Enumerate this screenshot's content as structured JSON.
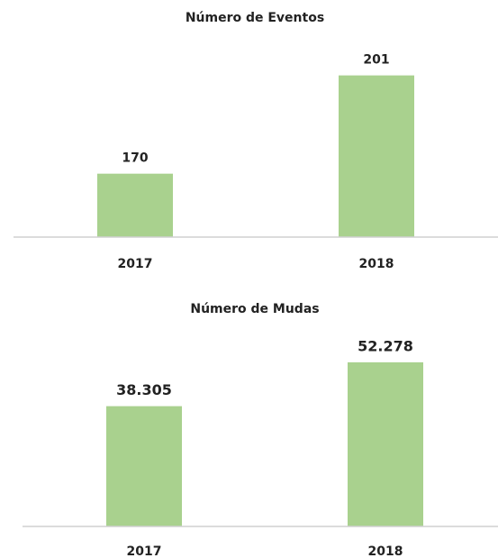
{
  "chart_data": [
    {
      "type": "bar",
      "title": "Número de Eventos",
      "categories": [
        "2017",
        "2018"
      ],
      "values": [
        170,
        201
      ],
      "color": "#a9d18e",
      "ylim": [
        150,
        210
      ]
    },
    {
      "type": "bar",
      "title": "Número de Mudas",
      "categories": [
        "2017",
        "2018"
      ],
      "values": [
        38305,
        52278
      ],
      "value_labels": [
        "38.305",
        "52.278"
      ],
      "color": "#a9d18e",
      "ylim": [
        0,
        60000
      ]
    }
  ]
}
